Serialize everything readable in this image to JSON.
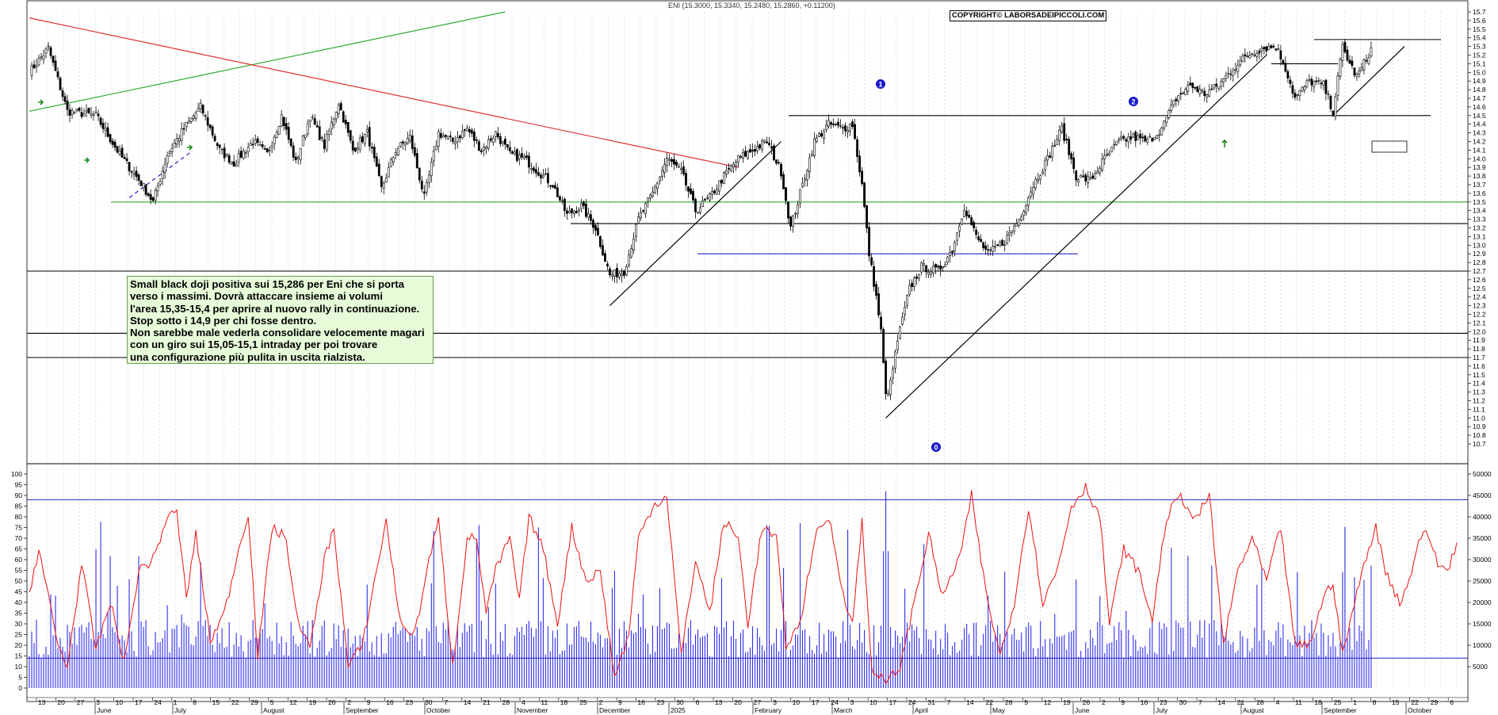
{
  "header": {
    "ticker_line": "ENI (15.3000, 15.3340, 15.2480, 15.2860, +0.11200)",
    "copyright": "COPYRIGHT© LABORSADEIPICCOLI.COM"
  },
  "annotation": {
    "lines": [
      "Small black doji  positiva sui 15,286 per Eni che si porta",
      "verso i massimi. Dovrà attaccare insieme ai volumi",
      "l'area 15,35-15,4 per aprire al nuovo rally in continuazione.",
      "Stop sotto i 14,9 per chi fosse dentro.",
      "Non sarebbe male vederla consolidare velocemente magari",
      "con un giro sui 15,05-15,1 intraday per poi trovare",
      "una configurazione più pulita in uscita rialzista."
    ]
  },
  "wave_labels": [
    "0",
    "1",
    "2"
  ],
  "colors": {
    "candle": "#000000",
    "support_green": "#2eaa2e",
    "trend_red": "#e03030",
    "volume": "#3030ee",
    "oscillator": "#ee1111",
    "guide_blue": "#2222cc",
    "annotation_bg": "#e6fbd8"
  },
  "chart_data": [
    {
      "type": "candlestick",
      "ylim": [
        10.7,
        15.7
      ],
      "y_ticks": [
        "15.7",
        "15.6",
        "15.5",
        "15.4",
        "15.3",
        "15.2",
        "15.1",
        "15.0",
        "14.9",
        "14.8",
        "14.7",
        "14.6",
        "14.5",
        "14.4",
        "14.3",
        "14.2",
        "14.1",
        "14.0",
        "13.9",
        "13.8",
        "13.7",
        "13.6",
        "13.5",
        "13.4",
        "13.3",
        "13.2",
        "13.1",
        "13.0",
        "12.9",
        "12.8",
        "12.7",
        "12.6",
        "12.5",
        "12.4",
        "12.3",
        "12.2",
        "12.1",
        "12.0",
        "11.9",
        "11.8",
        "11.7",
        "11.6",
        "11.5",
        "11.4",
        "11.3",
        "11.2",
        "11.1",
        "11.0",
        "10.9",
        "10.8",
        "10.7"
      ],
      "horizontal_levels": [
        {
          "y": 14.5,
          "color": "#000000"
        },
        {
          "y": 13.5,
          "color": "#2eaa2e"
        },
        {
          "y": 13.25,
          "color": "#000000"
        },
        {
          "y": 12.9,
          "color": "#2222cc"
        },
        {
          "y": 12.7,
          "color": "#000000"
        },
        {
          "y": 11.98,
          "color": "#000000"
        },
        {
          "y": 11.7,
          "color": "#000000"
        },
        {
          "y": 15.1,
          "color": "#000000"
        },
        {
          "y": 15.38,
          "color": "#000000"
        }
      ],
      "anchors": [
        {
          "i": 0,
          "v": 15.0
        },
        {
          "i": 8,
          "v": 15.28
        },
        {
          "i": 16,
          "v": 14.55
        },
        {
          "i": 28,
          "v": 14.5
        },
        {
          "i": 38,
          "v": 14.05
        },
        {
          "i": 47,
          "v": 13.72
        },
        {
          "i": 52,
          "v": 13.5
        },
        {
          "i": 58,
          "v": 14.05
        },
        {
          "i": 65,
          "v": 14.35
        },
        {
          "i": 72,
          "v": 14.6
        },
        {
          "i": 80,
          "v": 14.1
        },
        {
          "i": 86,
          "v": 13.95
        },
        {
          "i": 94,
          "v": 14.2
        },
        {
          "i": 100,
          "v": 14.05
        },
        {
          "i": 106,
          "v": 14.5
        },
        {
          "i": 112,
          "v": 13.95
        },
        {
          "i": 118,
          "v": 14.5
        },
        {
          "i": 124,
          "v": 14.15
        },
        {
          "i": 130,
          "v": 14.65
        },
        {
          "i": 136,
          "v": 14.1
        },
        {
          "i": 142,
          "v": 14.3
        },
        {
          "i": 148,
          "v": 13.65
        },
        {
          "i": 154,
          "v": 14.1
        },
        {
          "i": 160,
          "v": 14.25
        },
        {
          "i": 166,
          "v": 13.55
        },
        {
          "i": 172,
          "v": 14.3
        },
        {
          "i": 178,
          "v": 14.2
        },
        {
          "i": 184,
          "v": 14.35
        },
        {
          "i": 190,
          "v": 14.1
        },
        {
          "i": 196,
          "v": 14.3
        },
        {
          "i": 202,
          "v": 14.05
        },
        {
          "i": 208,
          "v": 14.0
        },
        {
          "i": 214,
          "v": 13.85
        },
        {
          "i": 220,
          "v": 13.7
        },
        {
          "i": 226,
          "v": 13.35
        },
        {
          "i": 232,
          "v": 13.45
        },
        {
          "i": 238,
          "v": 13.2
        },
        {
          "i": 244,
          "v": 12.65
        },
        {
          "i": 250,
          "v": 12.7
        },
        {
          "i": 256,
          "v": 13.3
        },
        {
          "i": 262,
          "v": 13.6
        },
        {
          "i": 268,
          "v": 14.0
        },
        {
          "i": 274,
          "v": 13.85
        },
        {
          "i": 280,
          "v": 13.4
        },
        {
          "i": 286,
          "v": 13.55
        },
        {
          "i": 292,
          "v": 13.8
        },
        {
          "i": 298,
          "v": 14.0
        },
        {
          "i": 304,
          "v": 14.1
        },
        {
          "i": 310,
          "v": 14.2
        },
        {
          "i": 316,
          "v": 13.85
        },
        {
          "i": 320,
          "v": 13.2
        },
        {
          "i": 324,
          "v": 13.6
        },
        {
          "i": 330,
          "v": 14.2
        },
        {
          "i": 336,
          "v": 14.4
        },
        {
          "i": 342,
          "v": 14.35
        },
        {
          "i": 346,
          "v": 14.4
        },
        {
          "i": 350,
          "v": 13.7
        },
        {
          "i": 353,
          "v": 12.9
        },
        {
          "i": 356,
          "v": 12.4
        },
        {
          "i": 358,
          "v": 12.0
        },
        {
          "i": 360,
          "v": 11.25
        },
        {
          "i": 362,
          "v": 11.4
        },
        {
          "i": 365,
          "v": 11.9
        },
        {
          "i": 370,
          "v": 12.5
        },
        {
          "i": 375,
          "v": 12.75
        },
        {
          "i": 382,
          "v": 12.7
        },
        {
          "i": 388,
          "v": 12.95
        },
        {
          "i": 393,
          "v": 13.45
        },
        {
          "i": 398,
          "v": 13.1
        },
        {
          "i": 403,
          "v": 12.9
        },
        {
          "i": 410,
          "v": 13.05
        },
        {
          "i": 416,
          "v": 13.3
        },
        {
          "i": 422,
          "v": 13.7
        },
        {
          "i": 428,
          "v": 14.0
        },
        {
          "i": 434,
          "v": 14.35
        },
        {
          "i": 440,
          "v": 13.8
        },
        {
          "i": 446,
          "v": 13.75
        },
        {
          "i": 452,
          "v": 14.0
        },
        {
          "i": 458,
          "v": 14.2
        },
        {
          "i": 464,
          "v": 14.25
        },
        {
          "i": 470,
          "v": 14.2
        },
        {
          "i": 476,
          "v": 14.35
        },
        {
          "i": 482,
          "v": 14.7
        },
        {
          "i": 488,
          "v": 14.85
        },
        {
          "i": 494,
          "v": 14.75
        },
        {
          "i": 500,
          "v": 14.85
        },
        {
          "i": 506,
          "v": 15.05
        },
        {
          "i": 512,
          "v": 15.2
        },
        {
          "i": 518,
          "v": 15.28
        },
        {
          "i": 524,
          "v": 15.3
        },
        {
          "i": 528,
          "v": 15.05
        },
        {
          "i": 532,
          "v": 14.7
        },
        {
          "i": 538,
          "v": 14.9
        },
        {
          "i": 544,
          "v": 14.85
        },
        {
          "i": 548,
          "v": 14.55
        },
        {
          "i": 552,
          "v": 15.3
        },
        {
          "i": 555,
          "v": 15.1
        },
        {
          "i": 558,
          "v": 14.95
        },
        {
          "i": 562,
          "v": 15.15
        },
        {
          "i": 564,
          "v": 15.286
        }
      ],
      "trendlines": [
        {
          "color": "#2eaa2e",
          "from": [
            0,
            14.55
          ],
          "to": [
            200,
            15.7
          ]
        },
        {
          "color": "#e03030",
          "from": [
            0,
            15.63
          ],
          "to": [
            298,
            13.9
          ]
        },
        {
          "color": "#000000",
          "from": [
            244,
            12.3
          ],
          "to": [
            316,
            14.2
          ]
        },
        {
          "color": "#000000",
          "from": [
            360,
            11.0
          ],
          "to": [
            520,
            15.2
          ]
        },
        {
          "color": "#000000",
          "from": [
            548,
            14.5
          ],
          "to": [
            578,
            15.3
          ]
        },
        {
          "color": "#2222cc",
          "from": [
            42,
            13.55
          ],
          "to": [
            68,
            14.08
          ]
        }
      ]
    },
    {
      "type": "line+bar",
      "series": [
        {
          "type": "line",
          "ylim": [
            0,
            100
          ],
          "anchors": [
            [
              0,
              45
            ],
            [
              4,
              65
            ],
            [
              12,
              20
            ],
            [
              16,
              10
            ],
            [
              22,
              58
            ],
            [
              28,
              18
            ],
            [
              34,
              40
            ],
            [
              40,
              12
            ],
            [
              46,
              55
            ],
            [
              52,
              60
            ],
            [
              58,
              80
            ],
            [
              62,
              82
            ],
            [
              66,
              42
            ],
            [
              70,
              72
            ],
            [
              76,
              22
            ],
            [
              82,
              35
            ],
            [
              88,
              65
            ],
            [
              92,
              82
            ],
            [
              96,
              15
            ],
            [
              102,
              75
            ],
            [
              108,
              70
            ],
            [
              112,
              35
            ],
            [
              118,
              18
            ],
            [
              124,
              60
            ],
            [
              128,
              75
            ],
            [
              134,
              10
            ],
            [
              140,
              20
            ],
            [
              146,
              55
            ],
            [
              150,
              78
            ],
            [
              156,
              30
            ],
            [
              162,
              25
            ],
            [
              168,
              60
            ],
            [
              172,
              78
            ],
            [
              178,
              10
            ],
            [
              184,
              70
            ],
            [
              188,
              70
            ],
            [
              192,
              35
            ],
            [
              196,
              55
            ],
            [
              202,
              70
            ],
            [
              206,
              40
            ],
            [
              210,
              80
            ],
            [
              216,
              65
            ],
            [
              222,
              30
            ],
            [
              228,
              75
            ],
            [
              234,
              50
            ],
            [
              240,
              55
            ],
            [
              246,
              5
            ],
            [
              252,
              25
            ],
            [
              256,
              70
            ],
            [
              262,
              85
            ],
            [
              268,
              90
            ],
            [
              274,
              15
            ],
            [
              280,
              60
            ],
            [
              286,
              35
            ],
            [
              292,
              78
            ],
            [
              298,
              70
            ],
            [
              302,
              30
            ],
            [
              308,
              75
            ],
            [
              314,
              70
            ],
            [
              318,
              20
            ],
            [
              324,
              30
            ],
            [
              330,
              70
            ],
            [
              336,
              80
            ],
            [
              342,
              45
            ],
            [
              346,
              30
            ],
            [
              350,
              78
            ],
            [
              354,
              10
            ],
            [
              360,
              2
            ],
            [
              366,
              10
            ],
            [
              370,
              30
            ],
            [
              378,
              72
            ],
            [
              384,
              42
            ],
            [
              392,
              65
            ],
            [
              396,
              90
            ],
            [
              402,
              45
            ],
            [
              408,
              15
            ],
            [
              414,
              40
            ],
            [
              420,
              85
            ],
            [
              426,
              40
            ],
            [
              432,
              55
            ],
            [
              438,
              85
            ],
            [
              444,
              94
            ],
            [
              450,
              80
            ],
            [
              454,
              30
            ],
            [
              460,
              65
            ],
            [
              466,
              55
            ],
            [
              472,
              32
            ],
            [
              478,
              80
            ],
            [
              484,
              90
            ],
            [
              490,
              78
            ],
            [
              496,
              90
            ],
            [
              502,
              20
            ],
            [
              508,
              55
            ],
            [
              514,
              70
            ],
            [
              520,
              50
            ],
            [
              526,
              75
            ],
            [
              532,
              20
            ],
            [
              538,
              20
            ],
            [
              544,
              42
            ],
            [
              548,
              50
            ],
            [
              552,
              15
            ],
            [
              556,
              35
            ],
            [
              562,
              62
            ],
            [
              566,
              75
            ],
            [
              570,
              55
            ],
            [
              576,
              40
            ],
            [
              580,
              50
            ],
            [
              584,
              70
            ],
            [
              588,
              72
            ],
            [
              592,
              58
            ],
            [
              596,
              55
            ],
            [
              600,
              68
            ]
          ]
        },
        {
          "type": "bar",
          "name": "volume",
          "ylim": [
            0,
            50000
          ]
        }
      ],
      "y_ticks_left": [
        "100",
        "95",
        "90",
        "85",
        "80",
        "75",
        "70",
        "65",
        "60",
        "55",
        "50",
        "45",
        "40",
        "35",
        "30",
        "25",
        "20",
        "15",
        "10",
        "5",
        "0"
      ],
      "y_ticks_right": [
        "50000",
        "45000",
        "40000",
        "35000",
        "30000",
        "25000",
        "20000",
        "15000",
        "10000",
        "5000"
      ],
      "horizontal_levels": [
        88,
        14
      ]
    }
  ],
  "x_axis": {
    "day_ticks": [
      "13",
      "20",
      "27",
      "3",
      "10",
      "17",
      "24",
      "1",
      "8",
      "15",
      "22",
      "29",
      "5",
      "12",
      "19",
      "26",
      "2",
      "9",
      "16",
      "23",
      "30",
      "7",
      "14",
      "21",
      "28",
      "4",
      "11",
      "18",
      "25",
      "2",
      "9",
      "16",
      "23",
      "30",
      "6",
      "13",
      "20",
      "27",
      "3",
      "10",
      "17",
      "24",
      "3",
      "10",
      "17",
      "24",
      "31",
      "7",
      "14",
      "22",
      "28",
      "5",
      "12",
      "19",
      "26",
      "2",
      "9",
      "16",
      "23",
      "30",
      "7",
      "14",
      "21",
      "28",
      "4",
      "11",
      "18",
      "25",
      "1",
      "8",
      "15",
      "22",
      "29",
      "6",
      "13",
      "20"
    ],
    "months": [
      "June",
      "July",
      "August",
      "September",
      "October",
      "November",
      "December",
      "2025",
      "February",
      "March",
      "April",
      "May",
      "June",
      "July",
      "August",
      "September",
      "October"
    ]
  }
}
